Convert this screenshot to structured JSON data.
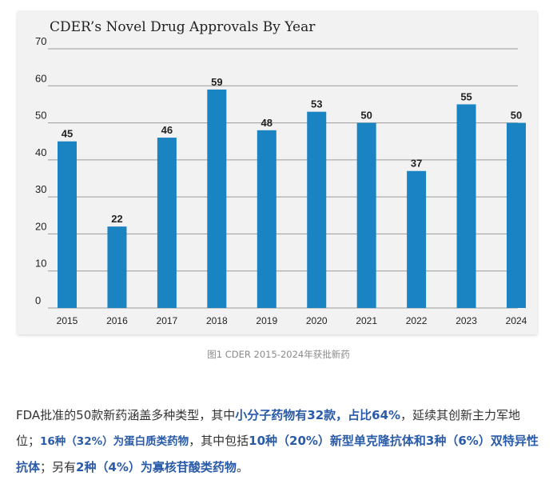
{
  "chart_data": {
    "type": "bar",
    "title": "CDER’s Novel Drug Approvals By Year",
    "categories": [
      "2015",
      "2016",
      "2017",
      "2018",
      "2019",
      "2020",
      "2021",
      "2022",
      "2023",
      "2024"
    ],
    "values": [
      45,
      22,
      46,
      59,
      48,
      53,
      50,
      37,
      55,
      50
    ],
    "yticks": [
      0,
      10,
      20,
      30,
      40,
      50,
      60,
      70
    ],
    "ylim": [
      0,
      70
    ],
    "xlabel": "",
    "ylabel": "",
    "grid": true,
    "bar_color": "#1a83c2"
  },
  "caption": "图1 CDER 2015-2024年获批新药",
  "paragraph": {
    "segments": [
      {
        "text": "FDA批准的50款新药涵盖多种类型，其中",
        "style": "normal"
      },
      {
        "text": "小分子药物有32款，占比64%",
        "style": "hl"
      },
      {
        "text": "，延续其创新主力军地位；",
        "style": "normal"
      },
      {
        "text": "16种（32%）为蛋白质类药物",
        "style": "hl-sm"
      },
      {
        "text": "，其中包括",
        "style": "normal"
      },
      {
        "text": "10种（20%）新型单克隆抗体和3种（6%）双特异性抗体",
        "style": "hl"
      },
      {
        "text": "；另有",
        "style": "normal"
      },
      {
        "text": "2种（4%）为寡核苷酸类药物",
        "style": "hl"
      },
      {
        "text": "。",
        "style": "normal"
      }
    ]
  },
  "colors": {
    "accent_text": "#2a5ba8",
    "caption_text": "#8a8a8a",
    "body_text": "#333333"
  }
}
